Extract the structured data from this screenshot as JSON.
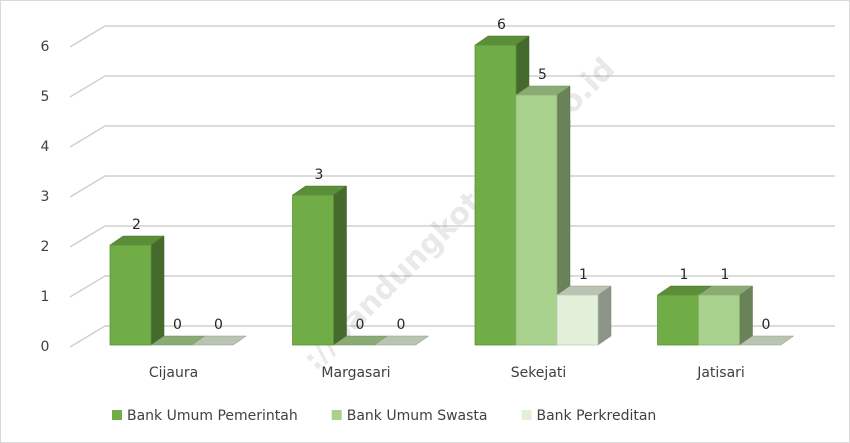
{
  "chart_data": {
    "type": "bar3d",
    "categories": [
      "Cijaura",
      "Margasari",
      "Sekejati",
      "Jatisari"
    ],
    "series": [
      {
        "name": "Bank Umum Pemerintah",
        "color": "#70ad47",
        "values": [
          2,
          3,
          6,
          1
        ]
      },
      {
        "name": "Bank Umum Swasta",
        "color": "#a9d18e",
        "values": [
          0,
          0,
          5,
          1
        ]
      },
      {
        "name": "Bank Perkreditan",
        "color": "#e2f0d9",
        "values": [
          0,
          0,
          1,
          0
        ]
      }
    ],
    "ylim": [
      0,
      6
    ],
    "yticks": [
      0,
      1,
      2,
      3,
      4,
      5,
      6
    ],
    "grid": true,
    "legend": "bottom",
    "watermark": "://bandungkota.bps.go.id"
  }
}
